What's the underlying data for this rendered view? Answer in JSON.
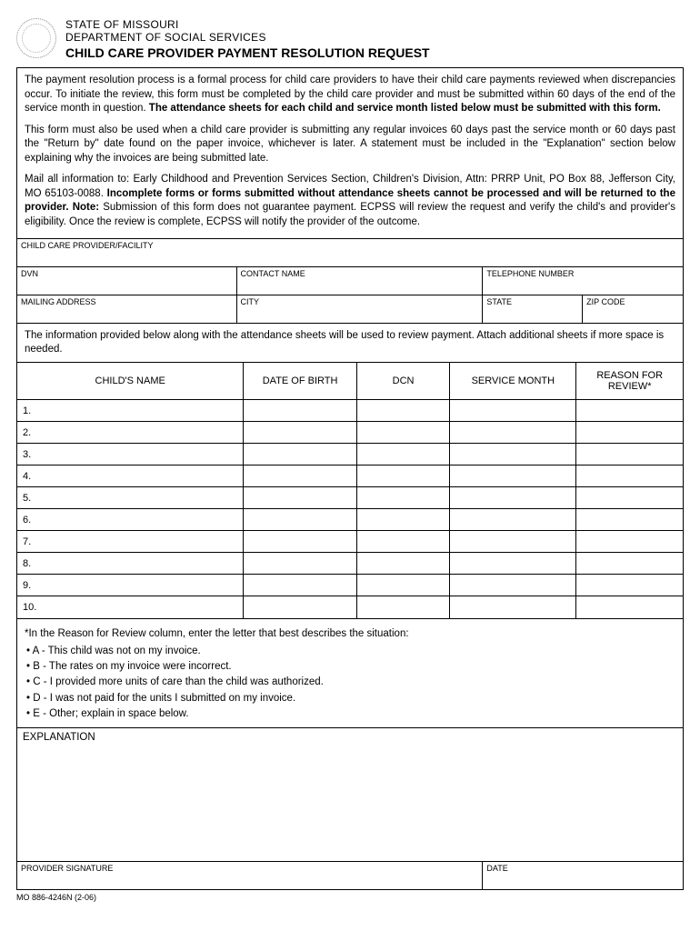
{
  "header": {
    "state": "STATE OF MISSOURI",
    "dept": "DEPARTMENT OF SOCIAL SERVICES",
    "title": "CHILD CARE PROVIDER PAYMENT RESOLUTION REQUEST"
  },
  "intro": {
    "p1a": "The payment resolution process is a formal process for child care providers to have their child care payments reviewed when discrepancies occur. To initiate the review, this form must be completed by the child care provider and must be submitted within 60 days of the end of the service month in question. ",
    "p1b": "The attendance sheets for each child and service month listed below must be submitted with this form.",
    "p2": "This form must also be used when a child care provider is submitting any regular invoices 60 days past the service month or 60 days past the \"Return by\" date found on the paper invoice, whichever is later. A statement must be included in the \"Explanation\" section below explaining why the invoices are being submitted late.",
    "p3a": "Mail all information to: Early Childhood and Prevention Services Section, Children's Division, Attn: PRRP Unit, PO Box 88, Jefferson City, MO 65103-0088. ",
    "p3b": "Incomplete forms or forms submitted without attendance sheets cannot be processed and will be returned to the provider. Note: ",
    "p3c": "Submission of this form does not guarantee payment. ECPSS will review the request and verify the child's and provider's eligibility. Once the review is complete, ECPSS will notify the provider of the outcome."
  },
  "fields": {
    "facility": "CHILD CARE PROVIDER/FACILITY",
    "dvn": "DVN",
    "contact": "CONTACT NAME",
    "phone": "TELEPHONE NUMBER",
    "mailing": "MAILING ADDRESS",
    "city": "CITY",
    "state": "STATE",
    "zip": "ZIP CODE"
  },
  "note": "The information provided below along with the attendance sheets will be used to review payment. Attach additional sheets if more space is needed.",
  "table": {
    "headers": [
      "CHILD'S NAME",
      "DATE OF BIRTH",
      "DCN",
      "SERVICE MONTH",
      "REASON FOR REVIEW*"
    ],
    "rows": [
      "1.",
      "2.",
      "3.",
      "4.",
      "5.",
      "6.",
      "7.",
      "8.",
      "9.",
      "10."
    ],
    "col_widths": [
      "34%",
      "17%",
      "14%",
      "19%",
      "16%"
    ]
  },
  "reasons": {
    "intro": "*In the Reason for Review column, enter the letter that best describes the situation:",
    "items": [
      "A - This child was not on my invoice.",
      "B - The rates on my invoice were incorrect.",
      "C - I provided more units of care than the child was authorized.",
      "D - I was not paid for the units I submitted on my invoice.",
      "E - Other; explain in space below."
    ]
  },
  "explanation_label": "EXPLANATION",
  "signature": {
    "sig": "PROVIDER SIGNATURE",
    "date": "DATE"
  },
  "form_id": "MO 886-4246N (2-06)"
}
